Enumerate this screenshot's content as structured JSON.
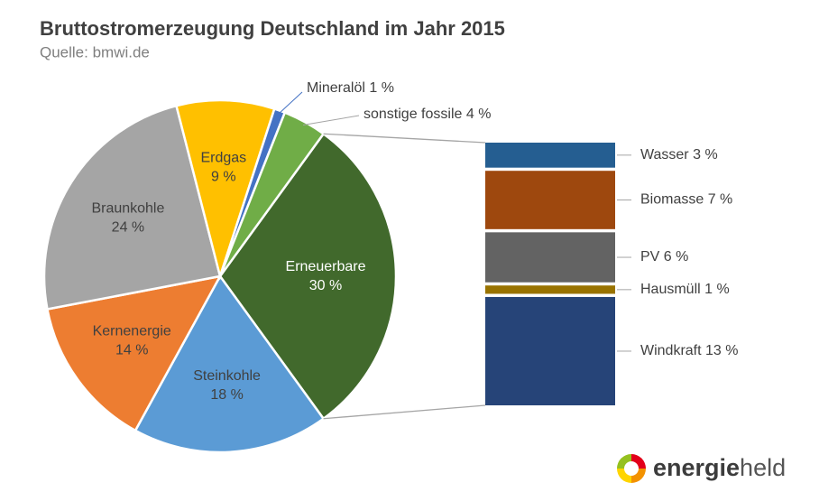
{
  "chart_data": {
    "type": "pie",
    "title": "Bruttostromerzeugung Deutschland im Jahr 2015",
    "subtitle": "Quelle: bmwi.de",
    "categories": [
      "Erneuerbare",
      "Steinkohle",
      "Kernenergie",
      "Braunkohle",
      "Erdgas",
      "Mineralöl",
      "sonstige fossile"
    ],
    "values": [
      30,
      18,
      14,
      24,
      9,
      1,
      4
    ],
    "value_labels": [
      "30 %",
      "18 %",
      "14 %",
      "24 %",
      "9 %",
      "1 %",
      "4 %"
    ],
    "colors": [
      "#41692c",
      "#5b9bd5",
      "#ed7d31",
      "#a5a5a5",
      "#ffc000",
      "#4472c4",
      "#70ad47"
    ],
    "breakdown": {
      "categories": [
        "Wasser",
        "Biomasse",
        "PV",
        "Hausmüll",
        "Windkraft"
      ],
      "values": [
        3,
        7,
        6,
        1,
        13
      ],
      "value_labels": [
        "3 %",
        "7 %",
        "6 %",
        "1 %",
        "13 %"
      ],
      "colors": [
        "#255e91",
        "#9e480e",
        "#636363",
        "#997300",
        "#264478"
      ]
    }
  },
  "logo": {
    "parts": [
      "energie",
      "held"
    ]
  }
}
